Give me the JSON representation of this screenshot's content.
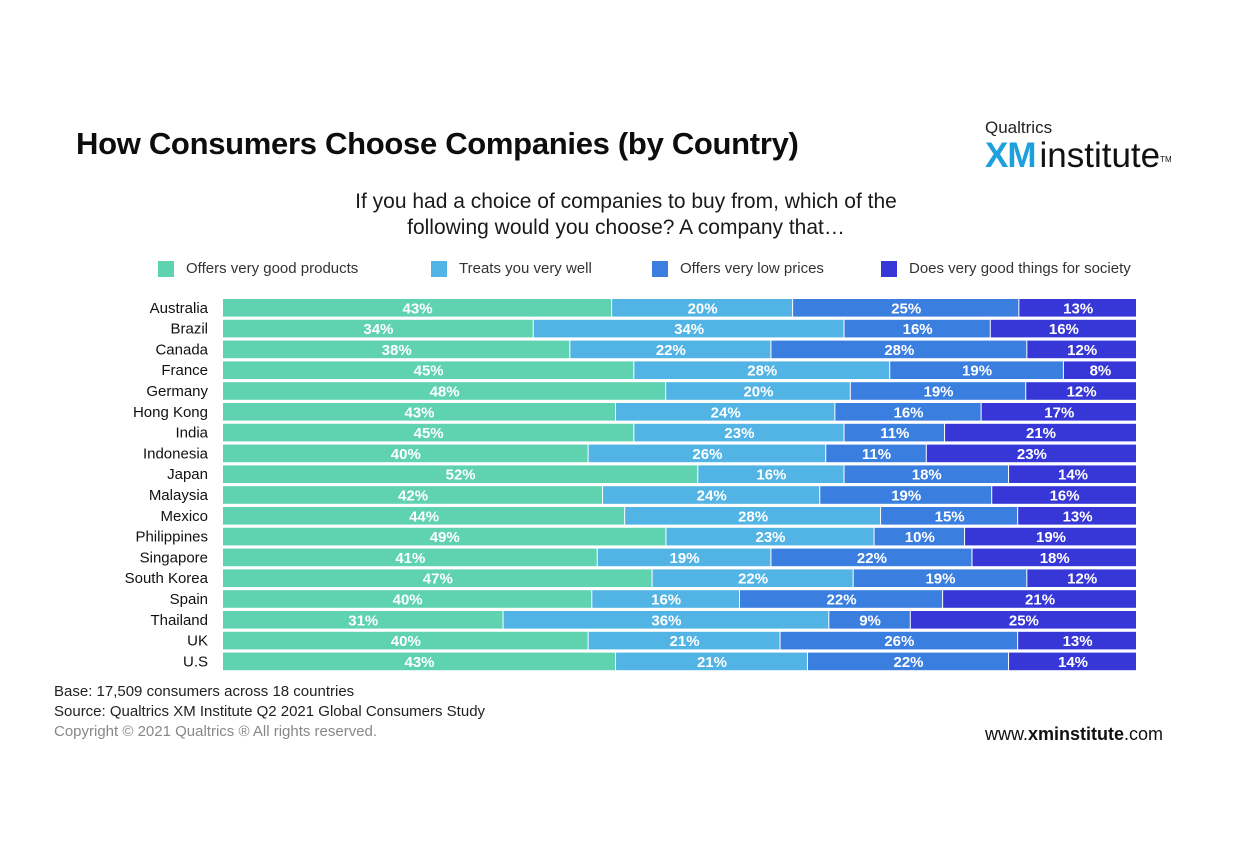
{
  "header": {
    "title": "How Consumers Choose Companies (by Country)"
  },
  "logo": {
    "brand": "Qualtrics",
    "xm": "XM",
    "institute": "institute",
    "tm": "TM"
  },
  "question": {
    "line1": "If you had a choice of companies to buy from, which of the",
    "line2": "following would you choose? A company that…"
  },
  "colors": {
    "series": [
      "#5fd3b0",
      "#52b4e5",
      "#3a7ee0",
      "#3737d8"
    ],
    "label": "#ffffff"
  },
  "legend": {
    "items": [
      "Offers very good  products",
      "Treats you very well",
      "Offers very low prices",
      "Does very good things for society"
    ]
  },
  "chart_data": {
    "type": "bar",
    "orientation": "horizontal",
    "stacked": true,
    "categories": [
      "Australia",
      "Brazil",
      "Canada",
      "France",
      "Germany",
      "Hong Kong",
      "India",
      "Indonesia",
      "Japan",
      "Malaysia",
      "Mexico",
      "Philippines",
      "Singapore",
      "South Korea",
      "Spain",
      "Thailand",
      "UK",
      "U.S"
    ],
    "series": [
      {
        "name": "Offers very good  products",
        "values": [
          43,
          34,
          38,
          45,
          48,
          43,
          45,
          40,
          52,
          42,
          44,
          49,
          41,
          47,
          40,
          31,
          40,
          43
        ]
      },
      {
        "name": "Treats you very well",
        "values": [
          20,
          34,
          22,
          28,
          20,
          24,
          23,
          26,
          16,
          24,
          28,
          23,
          19,
          22,
          16,
          36,
          21,
          21
        ]
      },
      {
        "name": "Offers very low prices",
        "values": [
          25,
          16,
          28,
          19,
          19,
          16,
          11,
          11,
          18,
          19,
          15,
          10,
          22,
          19,
          22,
          9,
          26,
          22
        ]
      },
      {
        "name": "Does very good things for society",
        "values": [
          13,
          16,
          12,
          8,
          12,
          17,
          21,
          23,
          14,
          16,
          13,
          19,
          18,
          12,
          21,
          25,
          13,
          14
        ]
      }
    ],
    "value_suffix": "%",
    "legend_position": "top",
    "grid": false
  },
  "footer": {
    "base": "Base: 17,509 consumers across 18 countries",
    "source": "Source: Qualtrics XM Institute Q2 2021 Global Consumers Study",
    "copyright": "Copyright © 2021 Qualtrics ® All rights reserved."
  },
  "website": {
    "prefix": "www.",
    "bold": "xminstitute",
    "suffix": ".com"
  }
}
